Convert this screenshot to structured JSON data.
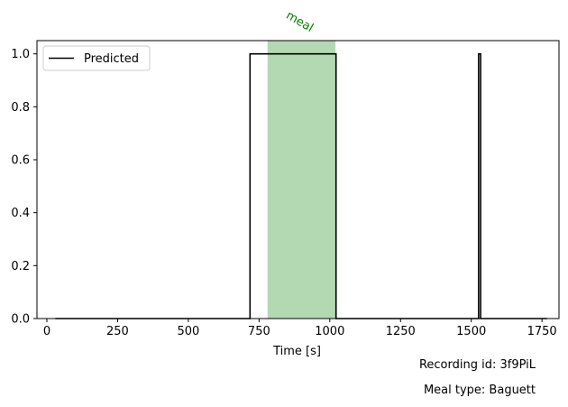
{
  "chart_data": {
    "type": "line",
    "title": "",
    "xlabel": "Time [s]",
    "ylabel": "",
    "xlim": [
      -35,
      1810
    ],
    "ylim": [
      0,
      1.05
    ],
    "xticks": [
      0,
      250,
      500,
      750,
      1000,
      1250,
      1500,
      1750
    ],
    "yticks": [
      0.0,
      0.2,
      0.4,
      0.6,
      0.8,
      1.0
    ],
    "xtick_labels": [
      "0",
      "250",
      "500",
      "750",
      "1000",
      "1250",
      "1500",
      "1750"
    ],
    "ytick_labels": [
      "0.0",
      "0.2",
      "0.4",
      "0.6",
      "0.8",
      "1.0"
    ],
    "grid": false,
    "legend_position": "top-left",
    "series": [
      {
        "name": "Predicted",
        "color": "#000000",
        "x": [
          30,
          718,
          718,
          1022,
          1022,
          1526,
          1526,
          1533,
          1533,
          1768
        ],
        "y": [
          0,
          0,
          1,
          1,
          0,
          0,
          1,
          1,
          0,
          0
        ]
      }
    ],
    "spans": [
      {
        "label": "meal",
        "x_start": 780,
        "x_end": 1020,
        "color": "#b3d9b3",
        "label_color": "#008000"
      }
    ]
  },
  "footer": {
    "recording_id": "Recording id: 3f9PiL",
    "meal_type": "Meal type: Baguett"
  }
}
